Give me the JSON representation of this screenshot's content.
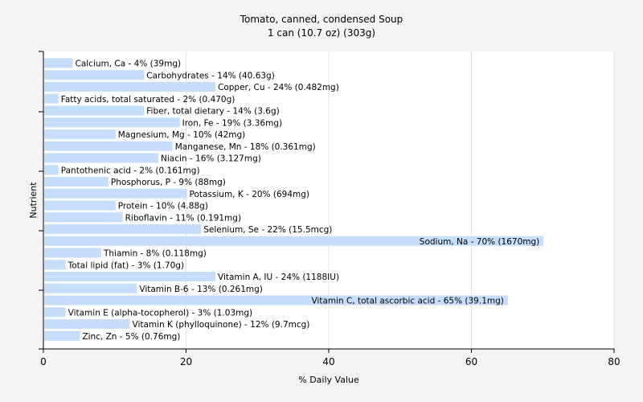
{
  "chart_data": {
    "type": "bar",
    "orientation": "horizontal",
    "title": "Tomato, canned, condensed Soup",
    "subtitle": "1 can (10.7 oz) (303g)",
    "xlabel": "% Daily Value",
    "ylabel": "Nutrient",
    "xlim": [
      0,
      80
    ],
    "xticks": [
      "0",
      "20",
      "40",
      "60",
      "80"
    ],
    "grid": true,
    "bar_color": "#c6defa",
    "categories": [
      "Calcium, Ca - 4% (39mg)",
      "Carbohydrates - 14% (40.63g)",
      "Copper, Cu - 24% (0.482mg)",
      "Fatty acids, total saturated - 2% (0.470g)",
      "Fiber, total dietary - 14% (3.6g)",
      "Iron, Fe - 19% (3.36mg)",
      "Magnesium, Mg - 10% (42mg)",
      "Manganese, Mn - 18% (0.361mg)",
      "Niacin - 16% (3.127mg)",
      "Pantothenic acid - 2% (0.161mg)",
      "Phosphorus, P - 9% (88mg)",
      "Potassium, K - 20% (694mg)",
      "Protein - 10% (4.88g)",
      "Riboflavin - 11% (0.191mg)",
      "Selenium, Se - 22% (15.5mcg)",
      "Sodium, Na - 70% (1670mg)",
      "Thiamin - 8% (0.118mg)",
      "Total lipid (fat) - 3% (1.70g)",
      "Vitamin A, IU - 24% (1188IU)",
      "Vitamin B-6 - 13% (0.261mg)",
      "Vitamin C, total ascorbic acid - 65% (39.1mg)",
      "Vitamin E (alpha-tocopherol) - 3% (1.03mg)",
      "Vitamin K (phylloquinone) - 12% (9.7mcg)",
      "Zinc, Zn - 5% (0.76mg)"
    ],
    "values": [
      4,
      14,
      24,
      2,
      14,
      19,
      10,
      18,
      16,
      2,
      9,
      20,
      10,
      11,
      22,
      70,
      8,
      3,
      24,
      13,
      65,
      3,
      12,
      5
    ]
  }
}
